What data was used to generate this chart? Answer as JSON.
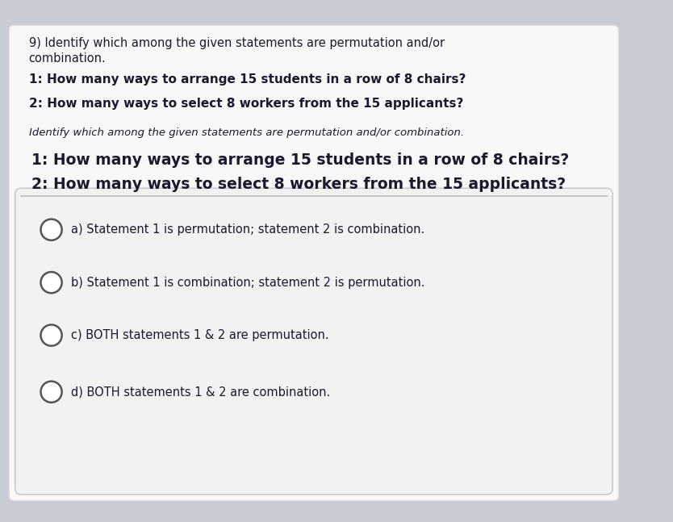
{
  "bg_color": "#c8ccd4",
  "card_color": "#f8f8f8",
  "header_line1": "9) Identify which among the given statements are permutation and/or",
  "header_line2": "combination.",
  "stmt1_header": "1: How many ways to arrange 15 students in a row of 8 chairs?",
  "stmt2_header": "2: How many ways to select 8 workers from the 15 applicants?",
  "italic_label": "Identify which among the given statements are permutation and/or combination.",
  "bold_stmt1": "1: How many ways to arrange 15 students in a row of 8 chairs?",
  "bold_stmt2": "2: How many ways to select 8 workers from the 15 applicants?",
  "choice_a": "a) Statement 1 is permutation; statement 2 is combination.",
  "choice_b": "b) Statement 1 is combination; statement 2 is permutation.",
  "choice_c": "c) BOTH statements 1 & 2 are permutation.",
  "choice_d": "d) BOTH statements 1 & 2 are combination.",
  "text_color": "#1a1a2e",
  "circle_color": "#555555",
  "separator_color": "#bbbbbb",
  "choices_box_color": "#f2f2f2",
  "choices_box_edge": "#cccccc"
}
